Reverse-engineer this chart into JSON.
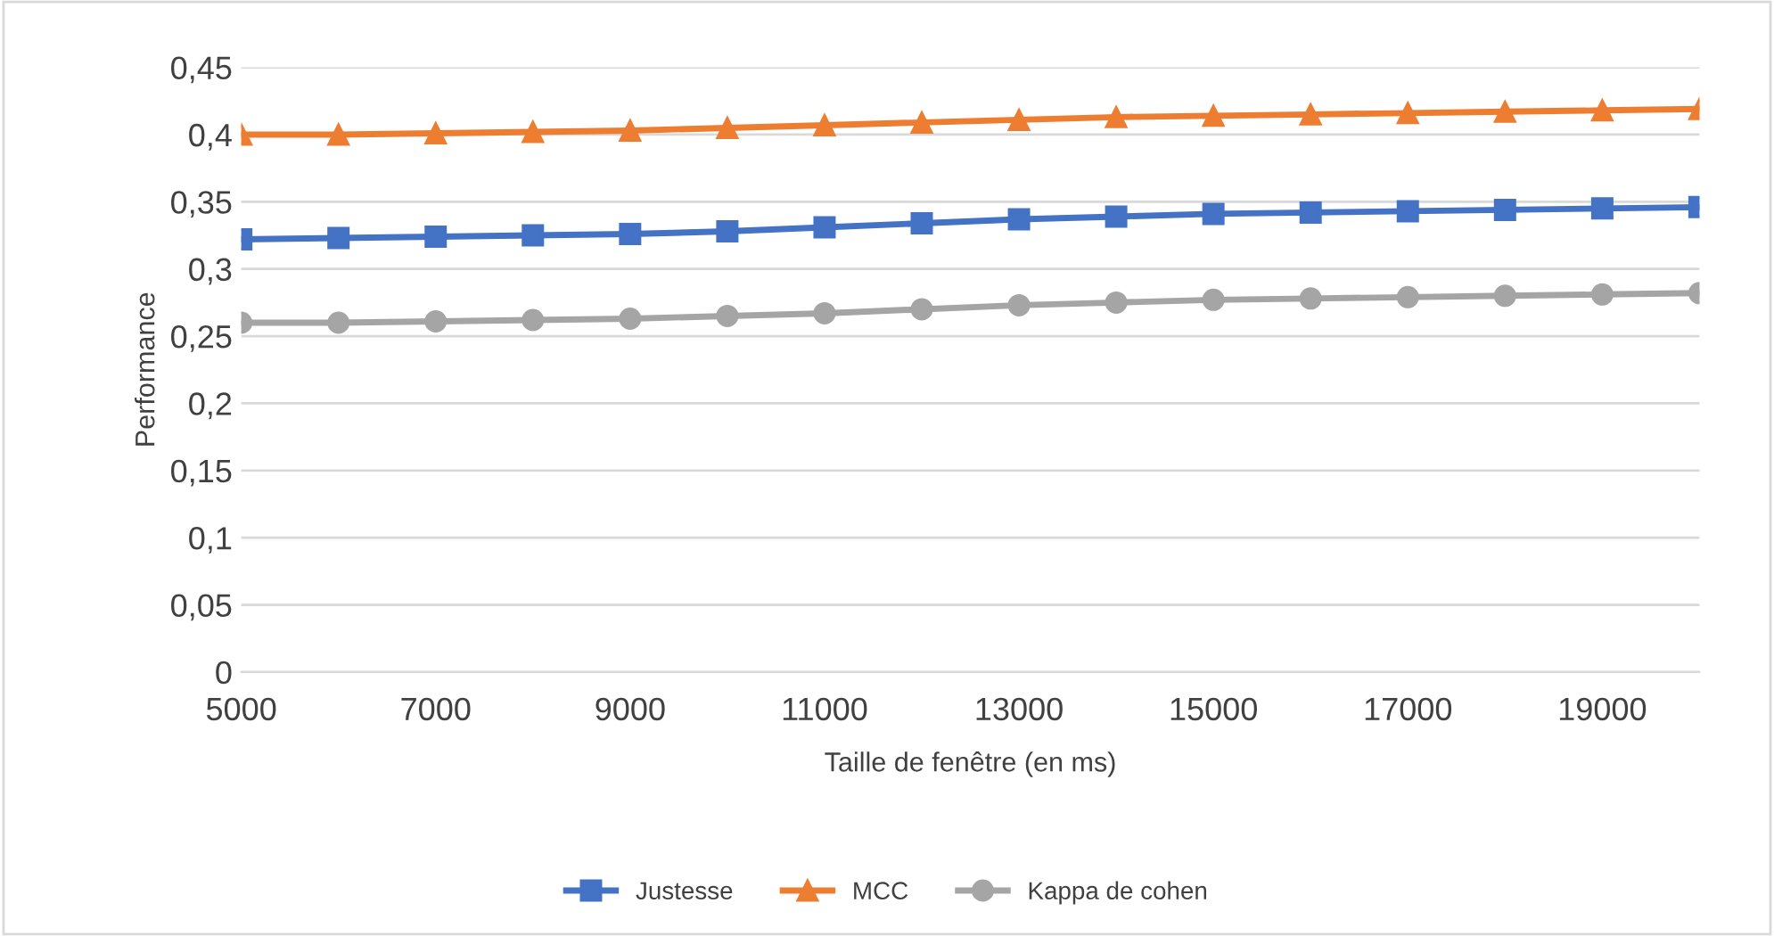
{
  "chart_data": {
    "type": "line",
    "xlabel": "Taille de fenêtre (en ms)",
    "ylabel": "Performance",
    "x": [
      5000,
      6000,
      7000,
      8000,
      9000,
      10000,
      11000,
      12000,
      13000,
      14000,
      15000,
      16000,
      17000,
      18000,
      19000,
      20000
    ],
    "series": [
      {
        "name": "Justesse",
        "color": "#4472c4",
        "marker": "square",
        "values": [
          0.322,
          0.323,
          0.324,
          0.325,
          0.326,
          0.328,
          0.331,
          0.334,
          0.337,
          0.339,
          0.341,
          0.342,
          0.343,
          0.344,
          0.345,
          0.346
        ]
      },
      {
        "name": "MCC",
        "color": "#ed7d31",
        "marker": "triangle",
        "values": [
          0.4,
          0.4,
          0.401,
          0.402,
          0.403,
          0.405,
          0.407,
          0.409,
          0.411,
          0.413,
          0.414,
          0.415,
          0.416,
          0.417,
          0.418,
          0.419
        ]
      },
      {
        "name": "Kappa de cohen",
        "color": "#a5a5a5",
        "marker": "circle",
        "values": [
          0.26,
          0.26,
          0.261,
          0.262,
          0.263,
          0.265,
          0.267,
          0.27,
          0.273,
          0.275,
          0.277,
          0.278,
          0.279,
          0.28,
          0.281,
          0.282
        ]
      }
    ],
    "xlim": [
      5000,
      20000
    ],
    "xticks": [
      5000,
      7000,
      9000,
      11000,
      13000,
      15000,
      17000,
      19000
    ],
    "ylim": [
      0,
      0.45
    ],
    "yticks": [
      {
        "value": 0,
        "label": "0"
      },
      {
        "value": 0.05,
        "label": "0,05"
      },
      {
        "value": 0.1,
        "label": "0,1"
      },
      {
        "value": 0.15,
        "label": "0,15"
      },
      {
        "value": 0.2,
        "label": "0,2"
      },
      {
        "value": 0.25,
        "label": "0,25"
      },
      {
        "value": 0.3,
        "label": "0,3"
      },
      {
        "value": 0.35,
        "label": "0,35"
      },
      {
        "value": 0.4,
        "label": "0,4"
      },
      {
        "value": 0.45,
        "label": "0,45"
      }
    ],
    "grid": "y",
    "legend": "bottom",
    "line_style": "solid"
  }
}
